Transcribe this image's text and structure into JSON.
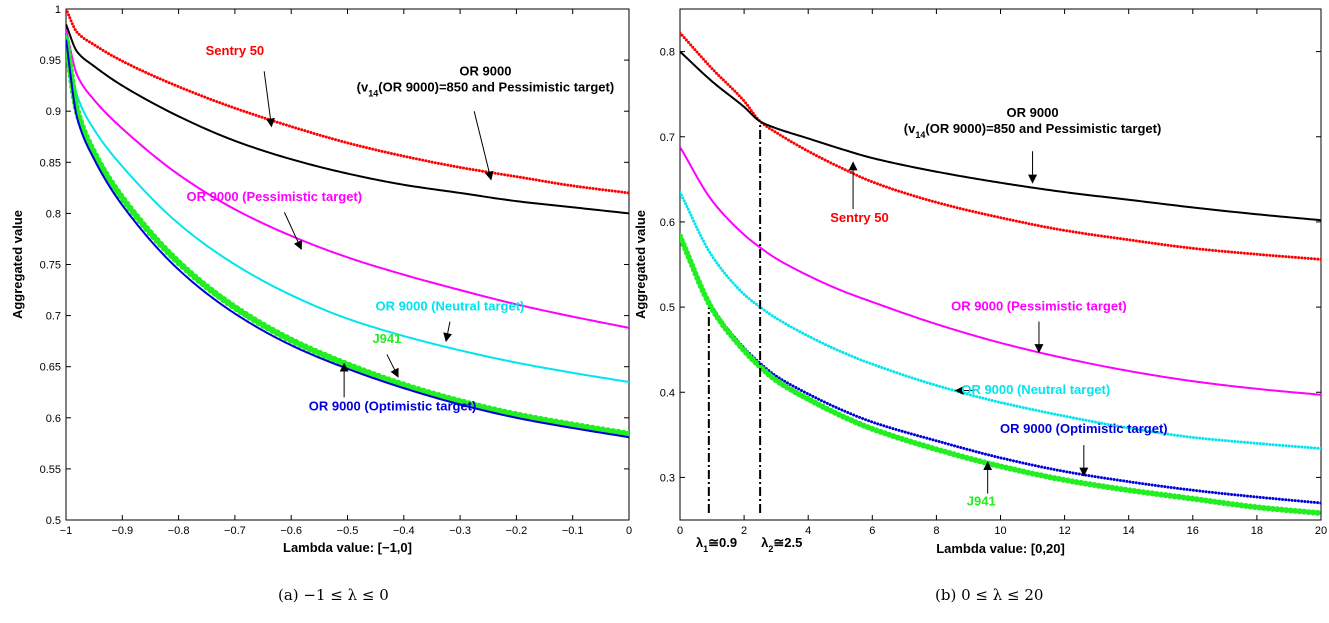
{
  "chart_data": [
    {
      "type": "line",
      "caption": "(a) −1 ≤ λ ≤ 0",
      "xlabel": "Lambda value: [−1,0]",
      "ylabel": "Aggregated value",
      "xlim": [
        -1,
        0
      ],
      "ylim": [
        0.5,
        1
      ],
      "xticks": [
        -1,
        -0.9,
        -0.8,
        -0.7,
        -0.6,
        -0.5,
        -0.4,
        -0.3,
        -0.2,
        -0.1,
        0
      ],
      "xtick_labels": [
        "−1",
        "−0.9",
        "−0.8",
        "−0.7",
        "−0.6",
        "−0.5",
        "−0.4",
        "−0.3",
        "−0.2",
        "−0.1",
        "0"
      ],
      "yticks": [
        0.5,
        0.55,
        0.6,
        0.65,
        0.7,
        0.75,
        0.8,
        0.85,
        0.9,
        0.95,
        1
      ],
      "ytick_labels": [
        "0.5",
        "0.55",
        "0.6",
        "0.65",
        "0.7",
        "0.75",
        "0.8",
        "0.85",
        "0.9",
        "0.95",
        "1"
      ],
      "grid": false,
      "series": [
        {
          "key": "sentry",
          "color": "#ff0000",
          "style": "dots",
          "width": 3,
          "x": [
            -1,
            -0.98,
            -0.95,
            -0.9,
            -0.8,
            -0.7,
            -0.6,
            -0.5,
            -0.4,
            -0.3,
            -0.2,
            -0.1,
            0
          ],
          "y": [
            1.0,
            0.977,
            0.965,
            0.949,
            0.924,
            0.903,
            0.885,
            0.869,
            0.856,
            0.845,
            0.836,
            0.827,
            0.82
          ]
        },
        {
          "key": "or_v14",
          "color": "#000000",
          "style": "line",
          "width": 2,
          "x": [
            -1,
            -0.98,
            -0.95,
            -0.9,
            -0.8,
            -0.7,
            -0.6,
            -0.5,
            -0.4,
            -0.3,
            -0.2,
            -0.1,
            0
          ],
          "y": [
            0.985,
            0.958,
            0.944,
            0.925,
            0.895,
            0.871,
            0.853,
            0.839,
            0.828,
            0.82,
            0.812,
            0.806,
            0.8
          ]
        },
        {
          "key": "or_pess",
          "color": "#ff00ff",
          "style": "line",
          "width": 2,
          "x": [
            -1,
            -0.98,
            -0.95,
            -0.9,
            -0.8,
            -0.7,
            -0.6,
            -0.5,
            -0.4,
            -0.3,
            -0.2,
            -0.1,
            0
          ],
          "y": [
            0.98,
            0.935,
            0.911,
            0.883,
            0.838,
            0.804,
            0.778,
            0.757,
            0.74,
            0.725,
            0.711,
            0.699,
            0.688
          ]
        },
        {
          "key": "or_neutral",
          "color": "#00e5ee",
          "style": "line",
          "width": 2,
          "x": [
            -1,
            -0.98,
            -0.95,
            -0.9,
            -0.8,
            -0.7,
            -0.6,
            -0.5,
            -0.4,
            -0.3,
            -0.2,
            -0.1,
            0
          ],
          "y": [
            0.975,
            0.915,
            0.882,
            0.846,
            0.79,
            0.75,
            0.72,
            0.697,
            0.68,
            0.666,
            0.654,
            0.644,
            0.635
          ]
        },
        {
          "key": "j941",
          "color": "#22ee22",
          "style": "dots",
          "width": 7,
          "x": [
            -1,
            -0.98,
            -0.95,
            -0.9,
            -0.8,
            -0.7,
            -0.6,
            -0.5,
            -0.4,
            -0.3,
            -0.2,
            -0.1,
            0
          ],
          "y": [
            0.97,
            0.9,
            0.859,
            0.815,
            0.752,
            0.708,
            0.676,
            0.652,
            0.632,
            0.616,
            0.603,
            0.593,
            0.584
          ]
        },
        {
          "key": "or_opt",
          "color": "#0000dd",
          "style": "line",
          "width": 2,
          "x": [
            -1,
            -0.98,
            -0.95,
            -0.9,
            -0.8,
            -0.7,
            -0.6,
            -0.5,
            -0.4,
            -0.3,
            -0.2,
            -0.1,
            0
          ],
          "y": [
            0.97,
            0.893,
            0.853,
            0.808,
            0.745,
            0.702,
            0.671,
            0.648,
            0.629,
            0.613,
            0.6,
            0.59,
            0.581
          ]
        }
      ],
      "annotations": [
        {
          "key": "sentry",
          "color": "#ff0000",
          "lines": [
            "Sentry 50"
          ],
          "text_at": [
            -0.7,
            0.955
          ],
          "arrow_from": [
            -0.648,
            0.939
          ],
          "arrow_to": [
            -0.635,
            0.885
          ]
        },
        {
          "key": "or_v14",
          "color": "#000000",
          "lines": [
            "OR 9000",
            "(v14(OR 9000)=850 and Pessimistic target)"
          ],
          "text_at": [
            -0.255,
            0.935
          ],
          "arrow_from": [
            -0.275,
            0.9
          ],
          "arrow_to": [
            -0.245,
            0.833
          ]
        },
        {
          "key": "or_pess",
          "color": "#ff00ff",
          "lines": [
            "OR 9000 (Pessimistic target)"
          ],
          "text_at": [
            -0.63,
            0.812
          ],
          "arrow_from": [
            -0.612,
            0.801
          ],
          "arrow_to": [
            -0.582,
            0.765
          ]
        },
        {
          "key": "or_neutral",
          "color": "#00e5ee",
          "lines": [
            "OR 9000 (Neutral target)"
          ],
          "text_at": [
            -0.318,
            0.705
          ],
          "arrow_from": [
            -0.318,
            0.694
          ],
          "arrow_to": [
            -0.325,
            0.675
          ]
        },
        {
          "key": "j941",
          "color": "#22ee22",
          "lines": [
            "J941"
          ],
          "text_at": [
            -0.43,
            0.673
          ],
          "arrow_from": [
            -0.43,
            0.662
          ],
          "arrow_to": [
            -0.41,
            0.64
          ]
        },
        {
          "key": "or_opt",
          "color": "#0000dd",
          "lines": [
            "OR 9000 (Optimistic target)"
          ],
          "text_at": [
            -0.42,
            0.607
          ],
          "arrow_from": [
            -0.506,
            0.62
          ],
          "arrow_to": [
            -0.506,
            0.653
          ]
        }
      ]
    },
    {
      "type": "line",
      "caption": "(b) 0 ≤ λ ≤ 20",
      "xlabel": "Lambda value: [0,20]",
      "ylabel": "Aggregated value",
      "xlim": [
        0,
        20
      ],
      "ylim": [
        0.25,
        0.85
      ],
      "xticks": [
        0,
        2,
        4,
        6,
        8,
        10,
        12,
        14,
        16,
        18,
        20
      ],
      "xtick_labels": [
        "0",
        "2",
        "4",
        "6",
        "8",
        "10",
        "12",
        "14",
        "16",
        "18",
        "20"
      ],
      "yticks": [
        0.3,
        0.4,
        0.5,
        0.6,
        0.7,
        0.8
      ],
      "ytick_labels": [
        "0.3",
        "0.4",
        "0.5",
        "0.6",
        "0.7",
        "0.8"
      ],
      "grid": false,
      "series": [
        {
          "key": "sentry",
          "color": "#ff0000",
          "style": "dots",
          "width": 3,
          "x": [
            0,
            1,
            2,
            2.5,
            3,
            4,
            5,
            6,
            8,
            10,
            12,
            14,
            16,
            18,
            20
          ],
          "y": [
            0.822,
            0.78,
            0.742,
            0.718,
            0.705,
            0.683,
            0.664,
            0.647,
            0.623,
            0.605,
            0.59,
            0.579,
            0.569,
            0.562,
            0.556
          ]
        },
        {
          "key": "or_v14",
          "color": "#000000",
          "style": "line",
          "width": 2,
          "x": [
            0,
            1,
            2,
            2.5,
            3,
            4,
            5,
            6,
            8,
            10,
            12,
            14,
            16,
            18,
            20
          ],
          "y": [
            0.8,
            0.765,
            0.735,
            0.718,
            0.71,
            0.698,
            0.686,
            0.675,
            0.659,
            0.646,
            0.635,
            0.626,
            0.617,
            0.609,
            0.602
          ]
        },
        {
          "key": "or_pess",
          "color": "#ff00ff",
          "style": "line",
          "width": 2,
          "x": [
            0,
            1,
            2,
            2.5,
            3,
            4,
            5,
            6,
            8,
            10,
            12,
            14,
            16,
            18,
            20
          ],
          "y": [
            0.688,
            0.625,
            0.585,
            0.57,
            0.557,
            0.537,
            0.52,
            0.506,
            0.48,
            0.458,
            0.44,
            0.425,
            0.413,
            0.404,
            0.397
          ]
        },
        {
          "key": "or_neutral",
          "color": "#00e5ee",
          "style": "dots",
          "width": 3,
          "x": [
            0,
            1,
            2,
            2.5,
            3,
            4,
            5,
            6,
            8,
            10,
            12,
            14,
            16,
            18,
            20
          ],
          "y": [
            0.635,
            0.56,
            0.515,
            0.5,
            0.487,
            0.466,
            0.448,
            0.433,
            0.408,
            0.388,
            0.372,
            0.358,
            0.347,
            0.34,
            0.334
          ]
        },
        {
          "key": "or_opt",
          "color": "#0000dd",
          "style": "dots",
          "width": 3,
          "x": [
            0,
            1,
            2,
            2.5,
            3,
            4,
            5,
            6,
            8,
            10,
            12,
            14,
            16,
            18,
            20
          ],
          "y": [
            0.583,
            0.5,
            0.452,
            0.434,
            0.419,
            0.398,
            0.38,
            0.365,
            0.343,
            0.323,
            0.307,
            0.295,
            0.285,
            0.277,
            0.27
          ]
        },
        {
          "key": "j941",
          "color": "#22ee22",
          "style": "dots",
          "width": 6,
          "x": [
            0,
            1,
            2,
            2.5,
            3,
            4,
            5,
            6,
            8,
            10,
            12,
            14,
            16,
            18,
            20
          ],
          "y": [
            0.583,
            0.498,
            0.449,
            0.43,
            0.414,
            0.392,
            0.373,
            0.357,
            0.333,
            0.313,
            0.297,
            0.285,
            0.275,
            0.265,
            0.258
          ]
        }
      ],
      "vlines": [
        {
          "x": 0.9,
          "y_top": 0.499,
          "label": "λ1≅0.9"
        },
        {
          "x": 2.5,
          "y_top": 0.718,
          "label": "λ2≅2.5"
        }
      ],
      "annotations": [
        {
          "key": "or_v14",
          "color": "#000000",
          "lines": [
            "OR 9000",
            "(v14(OR 9000)=850 and Pessimistic target)"
          ],
          "text_at": [
            11.0,
            0.723
          ],
          "arrow_from": [
            11.0,
            0.683
          ],
          "arrow_to": [
            11.0,
            0.646
          ]
        },
        {
          "key": "sentry",
          "color": "#ff0000",
          "lines": [
            "Sentry 50"
          ],
          "text_at": [
            5.6,
            0.6
          ],
          "arrow_from": [
            5.4,
            0.615
          ],
          "arrow_to": [
            5.4,
            0.67
          ]
        },
        {
          "key": "or_pess",
          "color": "#ff00ff",
          "lines": [
            "OR 9000 (Pessimistic target)"
          ],
          "text_at": [
            11.2,
            0.496
          ],
          "arrow_from": [
            11.2,
            0.483
          ],
          "arrow_to": [
            11.2,
            0.447
          ]
        },
        {
          "key": "or_neutral",
          "color": "#00e5ee",
          "lines": [
            "OR 9000 (Neutral target)"
          ],
          "text_at": [
            11.1,
            0.398
          ],
          "arrow_from": [
            9.2,
            0.402
          ],
          "arrow_to": [
            8.6,
            0.402
          ]
        },
        {
          "key": "or_opt",
          "color": "#0000dd",
          "lines": [
            "OR 9000 (Optimistic target)"
          ],
          "text_at": [
            12.6,
            0.352
          ],
          "arrow_from": [
            12.6,
            0.338
          ],
          "arrow_to": [
            12.6,
            0.302
          ]
        },
        {
          "key": "j941",
          "color": "#22ee22",
          "lines": [
            "J941"
          ],
          "text_at": [
            9.4,
            0.267
          ],
          "arrow_from": [
            9.6,
            0.281
          ],
          "arrow_to": [
            9.6,
            0.318
          ]
        }
      ]
    }
  ]
}
